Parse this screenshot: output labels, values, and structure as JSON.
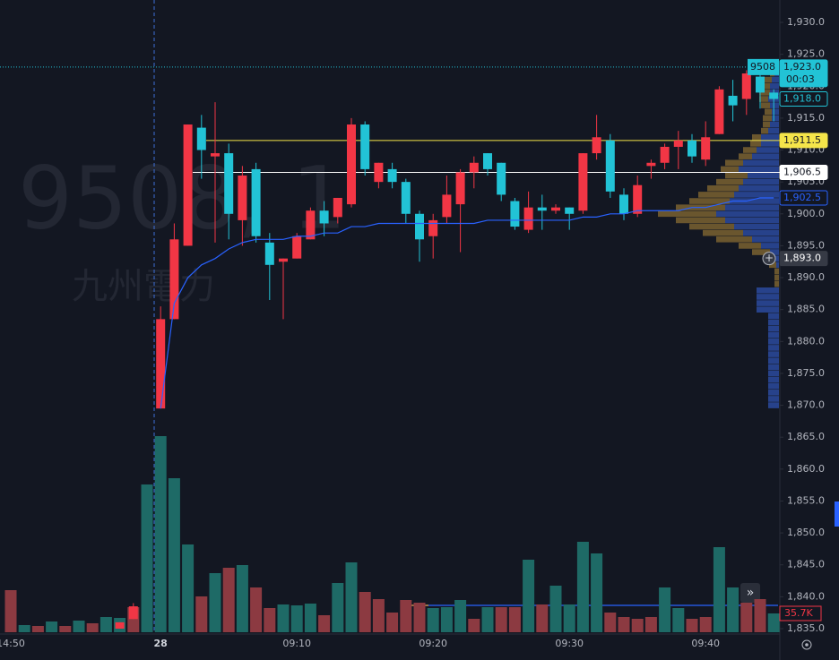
{
  "chart_data": {
    "type": "candlestick",
    "watermark": "9508, 1",
    "watermark_name": "九州電力",
    "categories": [
      "14:50",
      null,
      null,
      null,
      null,
      null,
      null,
      null,
      null,
      null,
      null,
      "28",
      null,
      null,
      null,
      null,
      null,
      null,
      null,
      null,
      null,
      "09:10",
      null,
      null,
      null,
      null,
      null,
      null,
      null,
      null,
      null,
      "09:20",
      null,
      null,
      null,
      null,
      null,
      null,
      null,
      null,
      null,
      "09:30",
      null,
      null,
      null,
      null,
      null,
      null,
      null,
      null,
      null,
      "09:40",
      null,
      null,
      null,
      null,
      null
    ],
    "open": [
      null,
      null,
      null,
      null,
      null,
      null,
      null,
      null,
      1835,
      1836.5,
      null,
      1869.5,
      1883.5,
      1895,
      1913.5,
      1909,
      1909.5,
      1899,
      1907,
      1895.5,
      1892.5,
      1893,
      1896,
      1900.5,
      1899.5,
      1901.5,
      1914,
      1905,
      1907,
      1905,
      1900,
      1896.5,
      1899.5,
      1901.5,
      1906.5,
      1909.5,
      1908,
      1902,
      1897.5,
      1901,
      1900.5,
      1901,
      1900.5,
      1909.5,
      1911.5,
      1903,
      1900,
      1907.5,
      1908,
      1910.5,
      1911.5,
      1908.5,
      1912.5,
      1918.5,
      1918,
      1921.5,
      1919
    ],
    "high": [
      null,
      null,
      null,
      null,
      null,
      null,
      null,
      null,
      1836,
      1839,
      null,
      1885.5,
      1898.5,
      1914,
      1915.5,
      1917.5,
      1911,
      1907.5,
      1908,
      1897,
      1893,
      1897,
      1901,
      1902,
      1902.5,
      1915,
      1914.5,
      1908,
      1908,
      1905.5,
      1900.5,
      1900,
      1906,
      1907,
      1909,
      1909.5,
      1908,
      1902.5,
      1903.5,
      1903,
      1901.5,
      1901,
      1909.5,
      1915.5,
      1912.5,
      1904,
      1906,
      1908.5,
      1911,
      1913,
      1912.5,
      1914.5,
      1920,
      1921,
      1922.5,
      1922.5,
      1919.5
    ],
    "low": [
      null,
      null,
      null,
      null,
      null,
      null,
      null,
      null,
      1835,
      1836.5,
      null,
      1869.5,
      1883.5,
      1895,
      1905.5,
      1895.5,
      1896,
      1895,
      1895.5,
      1886.5,
      1883.5,
      1893,
      1896,
      1896.5,
      1898.5,
      1901,
      1906,
      1904,
      1904,
      1898.5,
      1892.5,
      1893,
      1898.5,
      1894,
      1904,
      1906,
      1902,
      1897.5,
      1897,
      1897.5,
      1900,
      1897.5,
      1900,
      1908.5,
      1902.5,
      1899,
      1899.5,
      1905.5,
      1907,
      1907,
      1908,
      1907.5,
      1912.5,
      1914.5,
      1915.5,
      1916.5,
      1914.5
    ],
    "close": [
      null,
      null,
      null,
      null,
      null,
      null,
      null,
      null,
      1836,
      1838.5,
      null,
      1883.5,
      1896,
      1914,
      1910,
      1909.5,
      1900,
      1906,
      1896.5,
      1892,
      1893,
      1896.5,
      1900.5,
      1898.5,
      1902.5,
      1914,
      1907,
      1908,
      1905,
      1900,
      1896,
      1899,
      1903,
      1906.5,
      1908,
      1907,
      1903,
      1898,
      1901,
      1900.5,
      1901,
      1900,
      1909.5,
      1912,
      1903.5,
      1900,
      1904.5,
      1908,
      1910.5,
      1911.5,
      1909,
      1912,
      1919.5,
      1917,
      1922,
      1919,
      1918
    ],
    "up_color": "#f23645",
    "down_color": "#22c3d6",
    "vwap": {
      "color": "#2962ff",
      "values": [
        null,
        null,
        null,
        null,
        null,
        null,
        null,
        null,
        null,
        null,
        null,
        1869.5,
        1886,
        1890,
        1892,
        1893,
        1894.5,
        1895.5,
        1896,
        1896,
        1896,
        1896.5,
        1896.5,
        1897,
        1897,
        1898,
        1898,
        1898.5,
        1898.5,
        1898.5,
        1898.5,
        1898.5,
        1898.5,
        1898.5,
        1898.5,
        1899,
        1899,
        1899,
        1899,
        1899,
        1899,
        1899,
        1899.5,
        1899.5,
        1900,
        1900,
        1900.5,
        1900.5,
        1900.5,
        1900.5,
        1901,
        1901,
        1901.5,
        1902,
        1902,
        1902.5,
        1902.5
      ]
    },
    "volume": {
      "values": [
        79900,
        13600,
        11900,
        20400,
        11900,
        22100,
        17000,
        28900,
        27200,
        47600,
        280500,
        372300,
        292400,
        166600,
        68000,
        112200,
        122400,
        127500,
        85000,
        45900,
        52700,
        51000,
        54400,
        32300,
        93500,
        132600,
        76500,
        62900,
        37400,
        61200,
        56100,
        45900,
        47600,
        61200,
        25500,
        47600,
        47600,
        47600,
        137700,
        52700,
        88400,
        52700,
        171700,
        149600,
        37400,
        28900,
        25500,
        28900,
        85000,
        45900,
        25500,
        28900,
        161500,
        85000,
        56100,
        62900,
        35700
      ],
      "colors": [
        "#8c3a41",
        "#1e6a66",
        "#8c3a41",
        "#1e6a66",
        "#8c3a41",
        "#1e6a66",
        "#8c3a41",
        "#1e6a66",
        "#1e6a66",
        "#8c3a41",
        "#1e6a66",
        "#1e6a66",
        "#1e6a66",
        "#1e6a66",
        "#8c3a41",
        "#1e6a66",
        "#8c3a41",
        "#1e6a66",
        "#8c3a41",
        "#8c3a41",
        "#1e6a66",
        "#1e6a66",
        "#1e6a66",
        "#8c3a41",
        "#1e6a66",
        "#1e6a66",
        "#8c3a41",
        "#8c3a41",
        "#8c3a41",
        "#8c3a41",
        "#8c3a41",
        "#1e6a66",
        "#1e6a66",
        "#1e6a66",
        "#8c3a41",
        "#1e6a66",
        "#8c3a41",
        "#8c3a41",
        "#1e6a66",
        "#8c3a41",
        "#1e6a66",
        "#1e6a66",
        "#1e6a66",
        "#1e6a66",
        "#8c3a41",
        "#8c3a41",
        "#8c3a41",
        "#8c3a41",
        "#1e6a66",
        "#1e6a66",
        "#8c3a41",
        "#8c3a41",
        "#1e6a66",
        "#1e6a66",
        "#8c3a41",
        "#8c3a41",
        "#1e6a66"
      ],
      "last_label": {
        "value": 35700,
        "label": "35.7K"
      }
    },
    "profile": {
      "levels": [
        1870,
        1871,
        1872,
        1873,
        1874,
        1875,
        1876,
        1877,
        1878,
        1879,
        1880,
        1881,
        1882,
        1883,
        1884,
        1885,
        1886,
        1887,
        1888,
        1889,
        1890,
        1891,
        1892,
        1893,
        1894,
        1895,
        1896,
        1897,
        1898,
        1899,
        1900,
        1901,
        1902,
        1903,
        1904,
        1905,
        1906,
        1907,
        1908,
        1909,
        1910,
        1911,
        1912,
        1913,
        1914,
        1915,
        1916,
        1917,
        1918,
        1919,
        1920,
        1921,
        1922
      ],
      "series": [
        {
          "color": "#2b4a9e",
          "values": [
            12,
            12,
            12,
            12,
            12,
            12,
            12,
            12,
            12,
            12,
            12,
            12,
            12,
            12,
            12,
            25,
            25,
            25,
            25,
            0,
            0,
            0,
            3,
            6,
            10,
            20,
            30,
            40,
            50,
            60,
            70,
            60,
            55,
            50,
            45,
            40,
            35,
            45,
            40,
            30,
            25,
            20,
            20,
            12,
            10,
            8,
            8,
            10,
            12,
            10,
            10,
            8,
            5
          ]
        },
        {
          "color": "#7a6230",
          "values": [
            0,
            0,
            0,
            0,
            0,
            0,
            0,
            0,
            0,
            0,
            0,
            0,
            0,
            0,
            0,
            0,
            0,
            0,
            0,
            5,
            5,
            5,
            8,
            12,
            20,
            25,
            40,
            45,
            50,
            55,
            65,
            55,
            45,
            40,
            35,
            30,
            25,
            20,
            20,
            15,
            15,
            12,
            10,
            8,
            8,
            10,
            8,
            10,
            10,
            12,
            10,
            8,
            5
          ]
        }
      ]
    },
    "ylim": [
      1835,
      1930
    ],
    "yticks": [
      {
        "value": 1835,
        "label": "1,835.0"
      },
      {
        "value": 1840,
        "label": "1,840.0"
      },
      {
        "value": 1845,
        "label": "1,845.0"
      },
      {
        "value": 1850,
        "label": "1,850.0"
      },
      {
        "value": 1855,
        "label": "1,855.0"
      },
      {
        "value": 1860,
        "label": "1,860.0"
      },
      {
        "value": 1865,
        "label": "1,865.0"
      },
      {
        "value": 1870,
        "label": "1,870.0"
      },
      {
        "value": 1875,
        "label": "1,875.0"
      },
      {
        "value": 1880,
        "label": "1,880.0"
      },
      {
        "value": 1885,
        "label": "1,885.0"
      },
      {
        "value": 1890,
        "label": "1,890.0"
      },
      {
        "value": 1895,
        "label": "1,895.0"
      },
      {
        "value": 1900,
        "label": "1,900.0"
      },
      {
        "value": 1905,
        "label": "1,905.0"
      },
      {
        "value": 1910,
        "label": "1,910.0"
      },
      {
        "value": 1915,
        "label": "1,915.0"
      },
      {
        "value": 1920,
        "label": "1,920.0"
      },
      {
        "value": 1925,
        "label": "1,925.0"
      },
      {
        "value": 1930,
        "label": "1,930.0"
      }
    ],
    "grid": false,
    "symbol_tag": "9508",
    "last_price": {
      "value": 1923,
      "label": "1,923.0"
    },
    "countdown": "00:03",
    "prev_price": {
      "value": 1918,
      "label": "1,918.0"
    },
    "price_lines": [
      {
        "value": 1911.5,
        "label": "1,911.5",
        "color": "#f5e54a"
      },
      {
        "value": 1906.5,
        "label": "1,906.5",
        "color": "#ffffff"
      }
    ],
    "vwap_tag": {
      "value": 1902.5,
      "label": "1,902.5"
    },
    "crosshair": {
      "value": 1893,
      "label": "1,893.0"
    }
  }
}
